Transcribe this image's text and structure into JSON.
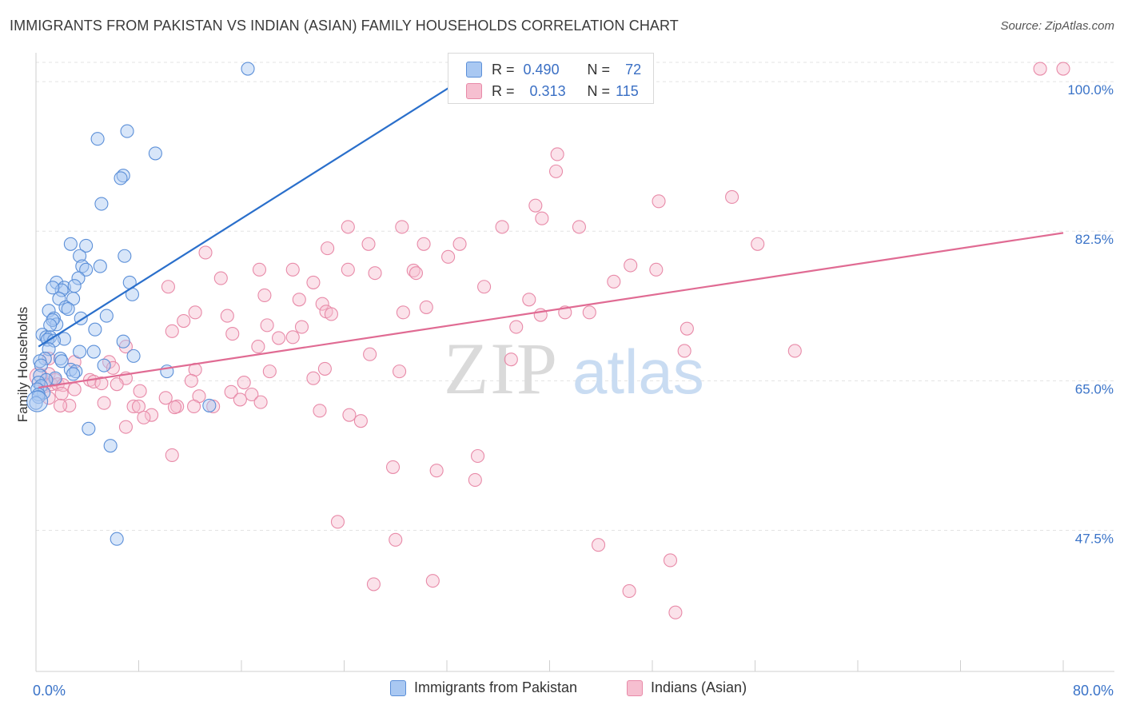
{
  "title": "IMMIGRANTS FROM PAKISTAN VS INDIAN (ASIAN) FAMILY HOUSEHOLDS CORRELATION CHART",
  "source": "Source: ZipAtlas.com",
  "watermark": {
    "zip": "ZIP",
    "atlas": "atlas"
  },
  "stats": {
    "pakistan": {
      "r_label": "R =",
      "r": "0.490",
      "n_label": "N =",
      "n": "72"
    },
    "indian": {
      "r_label": "R =",
      "r": "0.313",
      "n_label": "N =",
      "n": "115"
    }
  },
  "legend": {
    "pakistan": "Immigrants from Pakistan",
    "indian": "Indians (Asian)"
  },
  "colors": {
    "blue_fill": "#a9c8f2",
    "blue_stroke": "#5b8fd8",
    "blue_line": "#2a6fcb",
    "pink_fill": "#f6bfd0",
    "pink_stroke": "#e88aa8",
    "pink_line": "#e06b93",
    "tick_text": "#3a73c8",
    "grid": "#e3e3e3"
  },
  "chart_data": {
    "type": "scatter",
    "ylabel": "Family Households",
    "xlim": [
      0,
      80
    ],
    "ylim": [
      31,
      103
    ],
    "x_ticks": [
      0,
      8,
      16,
      24,
      32,
      40,
      48,
      56,
      64,
      72,
      80
    ],
    "x_tick_labels": [
      {
        "x": 0,
        "label": "0.0%"
      },
      {
        "x": 80,
        "label": "80.0%"
      }
    ],
    "y_ticks": [
      {
        "y": 47.5,
        "label": "47.5%"
      },
      {
        "y": 65.0,
        "label": "65.0%"
      },
      {
        "y": 82.5,
        "label": "82.5%"
      },
      {
        "y": 100.0,
        "label": "100.0%"
      }
    ],
    "series": [
      {
        "name": "Immigrants from Pakistan",
        "trend": [
          [
            0.2,
            69.0
          ],
          [
            34.5,
            101.5
          ]
        ],
        "points": [
          [
            16.5,
            101.5
          ],
          [
            7.1,
            94.2
          ],
          [
            4.8,
            93.3
          ],
          [
            9.3,
            91.6
          ],
          [
            6.8,
            89.0
          ],
          [
            6.6,
            88.7
          ],
          [
            5.1,
            85.7
          ],
          [
            2.7,
            81.0
          ],
          [
            3.9,
            80.8
          ],
          [
            6.9,
            79.6
          ],
          [
            3.4,
            79.6
          ],
          [
            5.0,
            78.4
          ],
          [
            3.6,
            78.4
          ],
          [
            3.9,
            78.0
          ],
          [
            3.3,
            77.0
          ],
          [
            7.3,
            76.5
          ],
          [
            1.6,
            76.5
          ],
          [
            2.2,
            75.9
          ],
          [
            3.0,
            76.1
          ],
          [
            2.0,
            75.6
          ],
          [
            1.3,
            75.9
          ],
          [
            7.5,
            75.1
          ],
          [
            1.8,
            74.6
          ],
          [
            2.9,
            74.6
          ],
          [
            2.3,
            73.6
          ],
          [
            2.5,
            73.4
          ],
          [
            1.0,
            73.2
          ],
          [
            1.4,
            72.3
          ],
          [
            5.5,
            72.6
          ],
          [
            3.5,
            72.3
          ],
          [
            1.6,
            71.6
          ],
          [
            1.3,
            72.1
          ],
          [
            1.1,
            71.5
          ],
          [
            4.6,
            71.0
          ],
          [
            0.5,
            70.4
          ],
          [
            0.8,
            70.1
          ],
          [
            1.1,
            70.1
          ],
          [
            0.9,
            69.8
          ],
          [
            2.2,
            69.9
          ],
          [
            1.4,
            69.7
          ],
          [
            6.8,
            69.6
          ],
          [
            1.0,
            68.7
          ],
          [
            3.4,
            68.4
          ],
          [
            4.5,
            68.4
          ],
          [
            7.6,
            67.9
          ],
          [
            0.7,
            67.6
          ],
          [
            0.3,
            67.3
          ],
          [
            1.9,
            67.6
          ],
          [
            2.0,
            67.3
          ],
          [
            0.4,
            66.8
          ],
          [
            5.3,
            66.8
          ],
          [
            2.7,
            66.3
          ],
          [
            3.1,
            66.1
          ],
          [
            10.2,
            66.1
          ],
          [
            2.9,
            65.8
          ],
          [
            0.3,
            65.6
          ],
          [
            1.5,
            65.3
          ],
          [
            0.8,
            65.1
          ],
          [
            0.2,
            64.8
          ],
          [
            0.4,
            64.4
          ],
          [
            0.1,
            64.0
          ],
          [
            0.6,
            63.6
          ],
          [
            0.2,
            63.4
          ],
          [
            0.2,
            63.1
          ],
          [
            0.0,
            62.4
          ],
          [
            13.5,
            62.1
          ],
          [
            4.1,
            59.4
          ],
          [
            5.8,
            57.4
          ],
          [
            6.3,
            46.5
          ]
        ]
      },
      {
        "name": "Indians (Asian)",
        "trend": [
          [
            0.2,
            64.2
          ],
          [
            80.0,
            82.3
          ]
        ],
        "points": [
          [
            78.2,
            101.5
          ],
          [
            80.0,
            101.5
          ],
          [
            40.6,
            91.5
          ],
          [
            40.5,
            89.5
          ],
          [
            54.2,
            86.5
          ],
          [
            48.5,
            86.0
          ],
          [
            38.9,
            85.5
          ],
          [
            39.4,
            84.0
          ],
          [
            24.3,
            83.0
          ],
          [
            28.5,
            83.0
          ],
          [
            36.3,
            83.0
          ],
          [
            42.3,
            83.0
          ],
          [
            56.2,
            81.0
          ],
          [
            25.9,
            81.0
          ],
          [
            30.2,
            81.0
          ],
          [
            33.0,
            81.0
          ],
          [
            22.7,
            80.5
          ],
          [
            13.2,
            80.0
          ],
          [
            32.1,
            79.5
          ],
          [
            46.3,
            78.5
          ],
          [
            48.3,
            78.0
          ],
          [
            17.4,
            78.0
          ],
          [
            20.0,
            78.0
          ],
          [
            24.3,
            78.0
          ],
          [
            29.4,
            77.9
          ],
          [
            29.6,
            77.6
          ],
          [
            26.4,
            77.6
          ],
          [
            14.4,
            77.0
          ],
          [
            45.0,
            76.6
          ],
          [
            21.6,
            76.5
          ],
          [
            34.9,
            76.0
          ],
          [
            10.3,
            76.0
          ],
          [
            17.8,
            75.0
          ],
          [
            20.5,
            74.5
          ],
          [
            38.4,
            74.5
          ],
          [
            22.3,
            74.0
          ],
          [
            30.4,
            73.6
          ],
          [
            22.6,
            73.1
          ],
          [
            28.6,
            73.0
          ],
          [
            43.1,
            73.0
          ],
          [
            41.2,
            73.0
          ],
          [
            12.4,
            73.0
          ],
          [
            23.0,
            72.8
          ],
          [
            39.3,
            72.7
          ],
          [
            14.9,
            72.6
          ],
          [
            11.5,
            72.0
          ],
          [
            18.0,
            71.5
          ],
          [
            20.7,
            71.3
          ],
          [
            50.7,
            71.1
          ],
          [
            37.4,
            71.3
          ],
          [
            10.6,
            70.8
          ],
          [
            15.3,
            70.5
          ],
          [
            18.9,
            70.0
          ],
          [
            20.0,
            70.1
          ],
          [
            7.0,
            69.0
          ],
          [
            17.3,
            69.0
          ],
          [
            50.5,
            68.5
          ],
          [
            59.1,
            68.5
          ],
          [
            26.0,
            68.1
          ],
          [
            37.0,
            67.5
          ],
          [
            1.0,
            67.6
          ],
          [
            3.0,
            67.2
          ],
          [
            5.7,
            67.2
          ],
          [
            22.5,
            66.4
          ],
          [
            6.0,
            66.5
          ],
          [
            12.4,
            66.3
          ],
          [
            18.2,
            66.1
          ],
          [
            28.3,
            66.1
          ],
          [
            1.0,
            65.8
          ],
          [
            7.0,
            65.3
          ],
          [
            1.5,
            65.1
          ],
          [
            4.2,
            65.1
          ],
          [
            21.6,
            65.3
          ],
          [
            4.5,
            64.9
          ],
          [
            5.1,
            64.7
          ],
          [
            12.1,
            65.0
          ],
          [
            0.7,
            64.6
          ],
          [
            1.2,
            64.6
          ],
          [
            1.7,
            64.6
          ],
          [
            16.2,
            64.8
          ],
          [
            2.1,
            64.5
          ],
          [
            6.3,
            64.6
          ],
          [
            3.0,
            64.0
          ],
          [
            2.0,
            63.5
          ],
          [
            15.2,
            63.7
          ],
          [
            8.1,
            63.8
          ],
          [
            16.8,
            63.4
          ],
          [
            12.7,
            63.2
          ],
          [
            1.0,
            63.0
          ],
          [
            10.1,
            63.0
          ],
          [
            15.9,
            62.8
          ],
          [
            17.5,
            62.5
          ],
          [
            11.0,
            62.0
          ],
          [
            12.3,
            62.0
          ],
          [
            13.8,
            62.0
          ],
          [
            7.6,
            62.0
          ],
          [
            8.0,
            62.0
          ],
          [
            5.3,
            62.4
          ],
          [
            2.6,
            62.1
          ],
          [
            1.9,
            62.1
          ],
          [
            10.8,
            61.9
          ],
          [
            22.1,
            61.5
          ],
          [
            9.0,
            61.0
          ],
          [
            24.4,
            61.0
          ],
          [
            8.4,
            60.7
          ],
          [
            25.3,
            60.3
          ],
          [
            7.0,
            59.6
          ],
          [
            10.6,
            56.3
          ],
          [
            34.4,
            56.2
          ],
          [
            27.8,
            54.9
          ],
          [
            31.2,
            54.5
          ],
          [
            34.2,
            53.4
          ],
          [
            23.5,
            48.5
          ],
          [
            28.0,
            46.4
          ],
          [
            43.8,
            45.8
          ],
          [
            49.4,
            44.0
          ],
          [
            26.3,
            41.2
          ],
          [
            30.9,
            41.6
          ],
          [
            46.2,
            40.4
          ],
          [
            49.8,
            37.9
          ]
        ]
      }
    ]
  }
}
